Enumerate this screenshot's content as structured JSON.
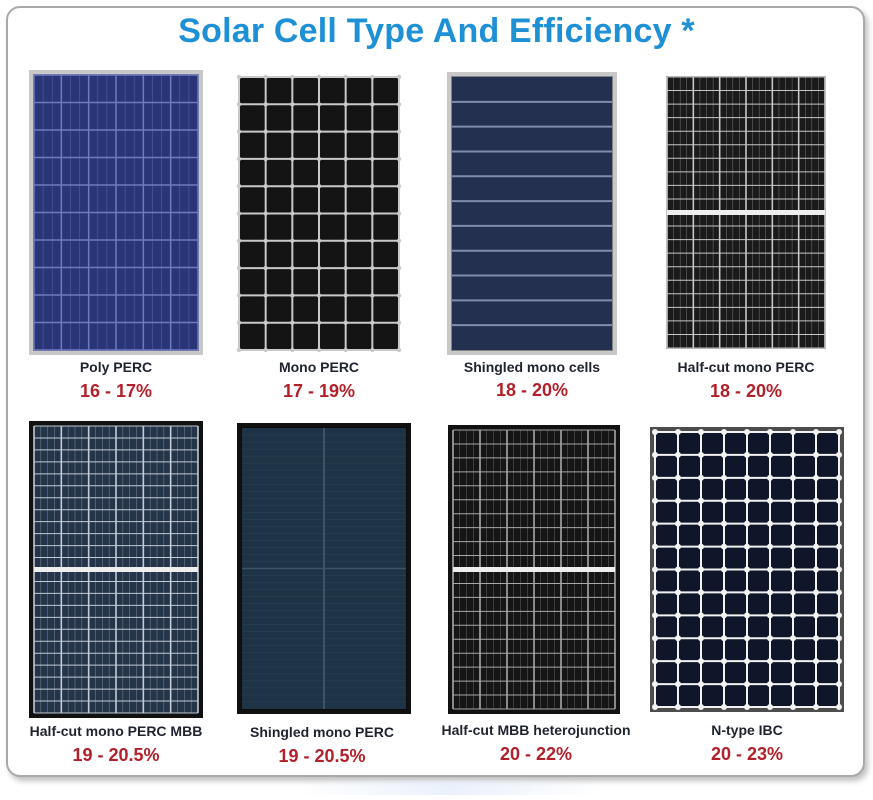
{
  "title": "Solar Cell Type And Efficiency *",
  "panels": [
    {
      "name": "Poly PERC",
      "efficiency": "16 - 17%",
      "style": "poly",
      "frame": "#c8c8c8",
      "cell": "#2a3577",
      "line": "#6e7bbf",
      "cols": 6,
      "rows": 10
    },
    {
      "name": "Mono PERC",
      "efficiency": "17 - 19%",
      "style": "mono-dot",
      "frame": "#ffffff",
      "cell": "#141414",
      "line": "#c9c9c9",
      "cols": 6,
      "rows": 10
    },
    {
      "name": "Shingled  mono cells",
      "efficiency": "18 - 20%",
      "style": "shingled",
      "frame": "#c8c8c8",
      "cell": "#24304f",
      "line": "#7e8cad",
      "cols": 1,
      "rows": 11
    },
    {
      "name": "Half-cut mono PERC",
      "efficiency": "18 - 20%",
      "style": "halfcut",
      "frame": "#ffffff",
      "cell": "#1a1a1a",
      "line": "#c7c7c7",
      "cols": 6,
      "rows": 20
    },
    {
      "name": "Half-cut mono PERC MBB",
      "efficiency": "19 - 20.5%",
      "style": "halfcut-mbb",
      "frame": "#111111",
      "cell": "#24354a",
      "line": "#c2cbd6",
      "cols": 6,
      "rows": 24
    },
    {
      "name": "Shingled mono PERC",
      "efficiency": "19 - 20.5%",
      "style": "shingled-split",
      "frame": "#111111",
      "cell": "#1e3446",
      "line": "#3c5466",
      "cols": 2,
      "rows": 1
    },
    {
      "name": "Half-cut MBB heterojunction",
      "efficiency": "20 - 22%",
      "style": "halfcut",
      "frame": "#111111",
      "cell": "#151515",
      "line": "#a8a8a8",
      "cols": 6,
      "rows": 20
    },
    {
      "name": "N-type IBC",
      "efficiency": "20 - 23%",
      "style": "ibc",
      "frame": "#4d4d4d",
      "cell": "#10162a",
      "line": "#f2f2f2",
      "cols": 8,
      "rows": 12
    }
  ]
}
